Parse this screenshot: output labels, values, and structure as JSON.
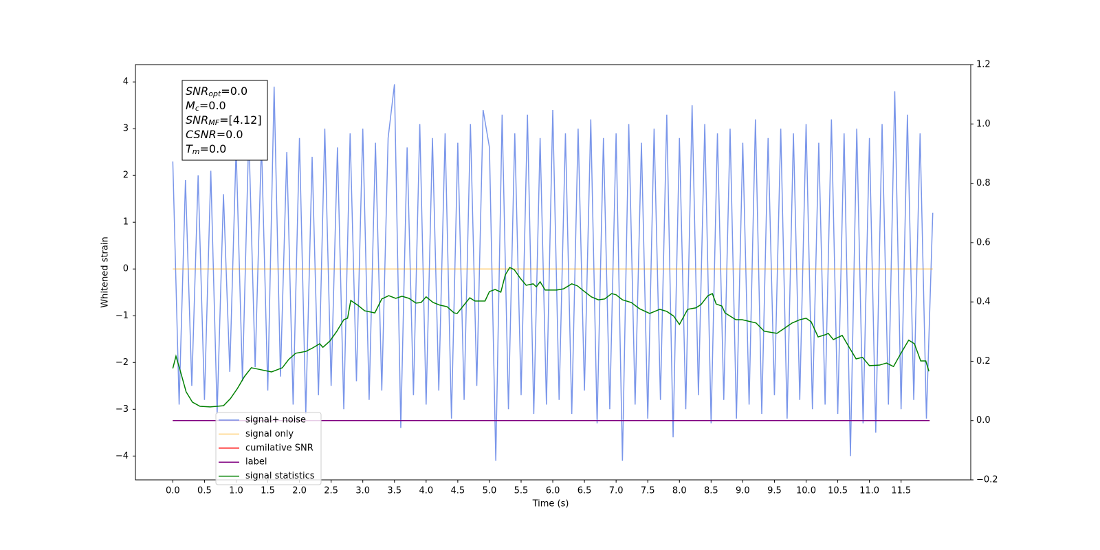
{
  "chart_data": {
    "type": "line",
    "xlabel": "Time (s)",
    "ylabel": "Whitened strain",
    "xlim": [
      -0.59,
      12.6
    ],
    "ylim": [
      -4.51,
      4.37
    ],
    "y2lim": [
      -0.2,
      1.2
    ],
    "xticks": [
      {
        "value": 0,
        "label": "0.0"
      },
      {
        "value": 0.5,
        "label": "0.5"
      },
      {
        "value": 1,
        "label": "1.0"
      },
      {
        "value": 1.5,
        "label": "1.5"
      },
      {
        "value": 2,
        "label": "2.0"
      },
      {
        "value": 2.5,
        "label": "2.5"
      },
      {
        "value": 3,
        "label": "3.0"
      },
      {
        "value": 3.5,
        "label": "3.5"
      },
      {
        "value": 4,
        "label": "4.0"
      },
      {
        "value": 4.5,
        "label": "4.5"
      },
      {
        "value": 5,
        "label": "5.0"
      },
      {
        "value": 5.5,
        "label": "5.5"
      },
      {
        "value": 6,
        "label": "6.0"
      },
      {
        "value": 6.5,
        "label": "6.5"
      },
      {
        "value": 7,
        "label": "7.0"
      },
      {
        "value": 7.5,
        "label": "7.5"
      },
      {
        "value": 8,
        "label": "8.0"
      },
      {
        "value": 8.5,
        "label": "8.5"
      },
      {
        "value": 9,
        "label": "9.0"
      },
      {
        "value": 9.5,
        "label": "9.5"
      },
      {
        "value": 10,
        "label": "10.0"
      },
      {
        "value": 10.5,
        "label": "10.5"
      },
      {
        "value": 11,
        "label": "11.0"
      },
      {
        "value": 11.5,
        "label": "11.5"
      }
    ],
    "yticks": [
      {
        "value": -4,
        "label": "−4"
      },
      {
        "value": -3,
        "label": "−3"
      },
      {
        "value": -2,
        "label": "−2"
      },
      {
        "value": -1,
        "label": "−1"
      },
      0,
      1,
      2,
      3,
      4
    ],
    "y2ticks": [
      {
        "value": -0.2,
        "label": "−0.2"
      },
      {
        "value": 0,
        "label": "0.0"
      },
      {
        "value": 0.2,
        "label": "0.2"
      },
      {
        "value": 0.4,
        "label": "0.4"
      },
      {
        "value": 0.6,
        "label": "0.6"
      },
      {
        "value": 0.8,
        "label": "0.8"
      },
      {
        "value": 1,
        "label": "1.0"
      },
      {
        "value": 1.2,
        "label": "1.2"
      }
    ],
    "grid": false,
    "legend": "lower left",
    "annotation": [
      {
        "base": "SNR",
        "sub": "opt",
        "text": "=0.0"
      },
      {
        "base": "M",
        "sub": "c",
        "text": "=0.0"
      },
      {
        "base": "SNR",
        "sub": "MF",
        "text": "=[4.12]"
      },
      {
        "base": "CSNR",
        "text": "=0.0"
      },
      {
        "base": "T",
        "sub": "m",
        "text": "=0.0"
      }
    ],
    "series": [
      {
        "name": "signal+ noise",
        "color": "#4169e1",
        "alpha": 0.7,
        "axis": "y",
        "x": [
          0,
          0.1,
          0.2,
          0.3,
          0.4,
          0.5,
          0.6,
          0.7,
          0.8,
          0.9,
          1,
          1.1,
          1.2,
          1.3,
          1.4,
          1.5,
          1.6,
          1.7,
          1.8,
          1.9,
          2,
          2.1,
          2.2,
          2.3,
          2.4,
          2.5,
          2.6,
          2.7,
          2.8,
          2.9,
          3,
          3.1,
          3.2,
          3.3,
          3.4,
          3.5,
          3.6,
          3.7,
          3.8,
          3.9,
          4,
          4.1,
          4.2,
          4.3,
          4.4,
          4.5,
          4.6,
          4.7,
          4.8,
          4.9,
          5,
          5.1,
          5.2,
          5.3,
          5.4,
          5.5,
          5.6,
          5.7,
          5.8,
          5.9,
          6,
          6.1,
          6.2,
          6.3,
          6.4,
          6.5,
          6.6,
          6.7,
          6.8,
          6.9,
          7,
          7.1,
          7.2,
          7.3,
          7.4,
          7.5,
          7.6,
          7.7,
          7.8,
          7.9,
          8,
          8.1,
          8.2,
          8.3,
          8.4,
          8.5,
          8.6,
          8.7,
          8.8,
          8.9,
          9,
          9.1,
          9.2,
          9.3,
          9.4,
          9.5,
          9.6,
          9.7,
          9.8,
          9.9,
          10,
          10.1,
          10.2,
          10.3,
          10.4,
          10.5,
          10.6,
          10.7,
          10.8,
          10.9,
          11,
          11.1,
          11.2,
          11.3,
          11.4,
          11.5,
          11.6,
          11.7,
          11.8,
          11.9,
          12
        ],
        "values": [
          2.3,
          -2.9,
          1.9,
          -2.5,
          2.0,
          -2.8,
          2.1,
          -3.1,
          1.6,
          -2.2,
          2.6,
          -2.4,
          2.9,
          -2.1,
          2.7,
          -2.6,
          3.9,
          -2.3,
          2.5,
          -2.9,
          2.8,
          -3.1,
          2.4,
          -2.7,
          3.0,
          -2.5,
          2.6,
          -3.0,
          2.9,
          -2.4,
          3.0,
          -2.8,
          2.7,
          -2.6,
          2.8,
          3.95,
          -3.4,
          2.6,
          -2.7,
          3.1,
          -2.9,
          2.8,
          -2.6,
          2.9,
          -3.2,
          2.7,
          -2.8,
          3.1,
          -2.5,
          3.4,
          2.6,
          -4.1,
          3.3,
          -3.0,
          2.9,
          -2.7,
          3.3,
          -3.1,
          2.8,
          -2.9,
          3.4,
          -2.8,
          2.9,
          -3.1,
          3.0,
          -2.6,
          3.2,
          -3.3,
          2.8,
          -3.0,
          2.9,
          -4.1,
          3.1,
          -2.9,
          2.7,
          -3.2,
          3.0,
          -2.8,
          3.3,
          -3.6,
          2.8,
          -3.0,
          3.5,
          -2.7,
          3.1,
          -3.3,
          2.9,
          -2.8,
          3.0,
          -3.2,
          2.7,
          -2.9,
          3.2,
          -3.1,
          2.8,
          -2.7,
          3.0,
          -3.2,
          2.9,
          -2.8,
          3.1,
          -3.0,
          2.7,
          -2.9,
          3.2,
          -3.1,
          2.9,
          -4.0,
          3.0,
          -3.3,
          2.8,
          -3.5,
          3.1,
          -2.9,
          3.8,
          -3.0,
          3.3,
          -2.8,
          2.9,
          -3.2,
          1.2
        ]
      },
      {
        "name": "signal only",
        "color": "#ffa500",
        "alpha": 0.5,
        "axis": "y",
        "x": [
          0,
          12
        ],
        "values": [
          0,
          0
        ]
      },
      {
        "name": "cumilative SNR",
        "color": "#ff0000",
        "alpha": 1,
        "axis": "y2",
        "x": [
          0,
          11.95
        ],
        "values": [
          0,
          0
        ]
      },
      {
        "name": "label",
        "color": "#800080",
        "alpha": 1,
        "axis": "y2",
        "x": [
          0,
          11.95
        ],
        "values": [
          0,
          0
        ]
      },
      {
        "name": "signal statistics",
        "color": "#008000",
        "alpha": 1,
        "axis": "y2",
        "x": [
          0,
          0.05,
          0.12,
          0.21,
          0.31,
          0.43,
          0.59,
          0.8,
          0.91,
          1.02,
          1.13,
          1.24,
          1.4,
          1.56,
          1.73,
          1.83,
          1.94,
          2.1,
          2.21,
          2.32,
          2.37,
          2.48,
          2.59,
          2.7,
          2.76,
          2.81,
          2.92,
          3.03,
          3.19,
          3.3,
          3.41,
          3.52,
          3.62,
          3.73,
          3.84,
          3.92,
          4.0,
          4.11,
          4.22,
          4.33,
          4.44,
          4.49,
          4.69,
          4.77,
          4.93,
          5.0,
          5.09,
          5.18,
          5.25,
          5.32,
          5.39,
          5.49,
          5.58,
          5.69,
          5.74,
          5.8,
          5.88,
          6.06,
          6.17,
          6.3,
          6.39,
          6.5,
          6.61,
          6.72,
          6.82,
          6.93,
          7.0,
          7.1,
          7.24,
          7.37,
          7.53,
          7.69,
          7.8,
          7.91,
          8.0,
          8.13,
          8.26,
          8.34,
          8.45,
          8.52,
          8.58,
          8.67,
          8.72,
          8.89,
          8.99,
          9.21,
          9.34,
          9.54,
          9.65,
          9.78,
          9.9,
          10.0,
          10.08,
          10.19,
          10.3,
          10.35,
          10.43,
          10.57,
          10.68,
          10.79,
          10.89,
          11.0,
          11.16,
          11.27,
          11.38,
          11.49,
          11.62,
          11.71,
          11.81,
          11.89,
          11.94
        ],
        "values": [
          0.176,
          0.217,
          0.166,
          0.097,
          0.062,
          0.048,
          0.046,
          0.05,
          0.074,
          0.108,
          0.148,
          0.178,
          0.171,
          0.164,
          0.178,
          0.206,
          0.227,
          0.233,
          0.245,
          0.259,
          0.247,
          0.268,
          0.301,
          0.34,
          0.345,
          0.405,
          0.389,
          0.37,
          0.363,
          0.41,
          0.421,
          0.412,
          0.419,
          0.412,
          0.396,
          0.398,
          0.417,
          0.398,
          0.389,
          0.384,
          0.363,
          0.361,
          0.414,
          0.403,
          0.403,
          0.435,
          0.442,
          0.433,
          0.491,
          0.516,
          0.509,
          0.479,
          0.456,
          0.461,
          0.451,
          0.468,
          0.44,
          0.44,
          0.444,
          0.461,
          0.454,
          0.435,
          0.417,
          0.407,
          0.41,
          0.428,
          0.424,
          0.407,
          0.398,
          0.377,
          0.361,
          0.375,
          0.368,
          0.352,
          0.324,
          0.375,
          0.38,
          0.391,
          0.421,
          0.428,
          0.393,
          0.386,
          0.363,
          0.34,
          0.34,
          0.329,
          0.301,
          0.294,
          0.31,
          0.329,
          0.34,
          0.345,
          0.333,
          0.282,
          0.289,
          0.294,
          0.273,
          0.287,
          0.247,
          0.208,
          0.213,
          0.185,
          0.187,
          0.194,
          0.182,
          0.224,
          0.271,
          0.259,
          0.201,
          0.201,
          0.166
        ]
      }
    ]
  }
}
